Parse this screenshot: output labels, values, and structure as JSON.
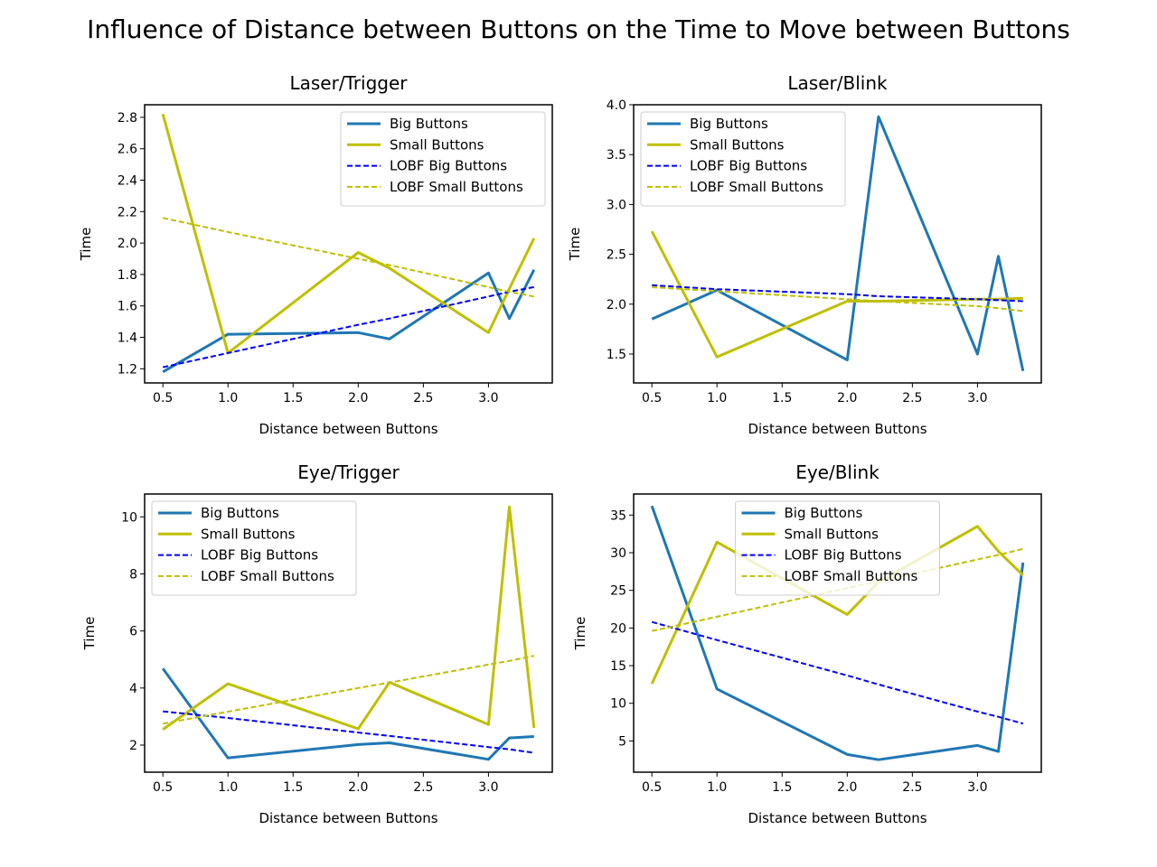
{
  "figure": {
    "title": "Influence of Distance between Buttons on the Time to Move between Buttons"
  },
  "colors": {
    "big": "#1f77b4",
    "small": "#bfbf00",
    "lobf_big": "#0000ff",
    "lobf_small": "#bfbf00"
  },
  "chart_data": [
    {
      "type": "line",
      "title": "Laser/Trigger",
      "xlabel": "Distance between Buttons",
      "ylabel": "Time",
      "xlim": [
        0.36,
        3.49
      ],
      "ylim": [
        1.11,
        2.88
      ],
      "xticks": [
        0.5,
        1.0,
        1.5,
        2.0,
        2.5,
        3.0
      ],
      "xtick_labels": [
        "0.5",
        "1.0",
        "1.5",
        "2.0",
        "2.5",
        "3.0"
      ],
      "yticks": [
        1.2,
        1.4,
        1.6,
        1.8,
        2.0,
        2.2,
        2.4,
        2.6,
        2.8
      ],
      "ytick_labels": [
        "1.2",
        "1.4",
        "1.6",
        "1.8",
        "2.0",
        "2.2",
        "2.4",
        "2.6",
        "2.8"
      ],
      "legend_loc": "upper right",
      "x": [
        0.5,
        1.0,
        2.0,
        2.24,
        3.0,
        3.16,
        3.35
      ],
      "series": [
        {
          "name": "Big Buttons",
          "style": "solid",
          "color_key": "big",
          "values": [
            1.18,
            1.42,
            1.43,
            1.39,
            1.81,
            1.52,
            1.83
          ]
        },
        {
          "name": "Small Buttons",
          "style": "solid",
          "color_key": "small",
          "values": [
            2.82,
            1.3,
            1.94,
            1.84,
            1.43,
            1.71,
            2.03
          ]
        },
        {
          "name": "LOBF Big Buttons",
          "style": "dashed",
          "color_key": "lobf_big",
          "values": [
            1.21,
            1.3,
            1.48,
            1.52,
            1.66,
            1.69,
            1.72
          ]
        },
        {
          "name": "LOBF Small Buttons",
          "style": "dashed",
          "color_key": "lobf_small",
          "values": [
            2.16,
            2.07,
            1.9,
            1.86,
            1.72,
            1.69,
            1.66
          ]
        }
      ]
    },
    {
      "type": "line",
      "title": "Laser/Blink",
      "xlabel": "Distance between Buttons",
      "ylabel": "Time",
      "xlim": [
        0.36,
        3.49
      ],
      "ylim": [
        1.21,
        4.0
      ],
      "xticks": [
        0.5,
        1.0,
        1.5,
        2.0,
        2.5,
        3.0
      ],
      "xtick_labels": [
        "0.5",
        "1.0",
        "1.5",
        "2.0",
        "2.5",
        "3.0"
      ],
      "yticks": [
        1.5,
        2.0,
        2.5,
        3.0,
        3.5,
        4.0
      ],
      "ytick_labels": [
        "1.5",
        "2.0",
        "2.5",
        "3.0",
        "3.5",
        "4.0"
      ],
      "legend_loc": "upper left",
      "x": [
        0.5,
        1.0,
        2.0,
        2.24,
        3.0,
        3.16,
        3.35
      ],
      "series": [
        {
          "name": "Big Buttons",
          "style": "solid",
          "color_key": "big",
          "values": [
            1.85,
            2.14,
            1.44,
            3.88,
            1.5,
            2.48,
            1.33
          ]
        },
        {
          "name": "Small Buttons",
          "style": "solid",
          "color_key": "small",
          "values": [
            2.73,
            1.47,
            2.03,
            2.03,
            2.05,
            2.05,
            2.06
          ]
        },
        {
          "name": "LOBF Big Buttons",
          "style": "dashed",
          "color_key": "lobf_big",
          "values": [
            2.19,
            2.15,
            2.1,
            2.08,
            2.05,
            2.04,
            2.03
          ]
        },
        {
          "name": "LOBF Small Buttons",
          "style": "dashed",
          "color_key": "lobf_small",
          "values": [
            2.17,
            2.13,
            2.05,
            2.03,
            1.98,
            1.96,
            1.93
          ]
        }
      ]
    },
    {
      "type": "line",
      "title": "Eye/Trigger",
      "xlabel": "Distance between Buttons",
      "ylabel": "Time",
      "xlim": [
        0.36,
        3.49
      ],
      "ylim": [
        1.05,
        10.8
      ],
      "xticks": [
        0.5,
        1.0,
        1.5,
        2.0,
        2.5,
        3.0
      ],
      "xtick_labels": [
        "0.5",
        "1.0",
        "1.5",
        "2.0",
        "2.5",
        "3.0"
      ],
      "yticks": [
        2,
        4,
        6,
        8,
        10
      ],
      "ytick_labels": [
        "2",
        "4",
        "6",
        "8",
        "10"
      ],
      "legend_loc": "upper left",
      "x": [
        0.5,
        1.0,
        2.0,
        2.24,
        3.0,
        3.16,
        3.35
      ],
      "series": [
        {
          "name": "Big Buttons",
          "style": "solid",
          "color_key": "big",
          "values": [
            4.68,
            1.55,
            2.02,
            2.08,
            1.5,
            2.25,
            2.3
          ]
        },
        {
          "name": "Small Buttons",
          "style": "solid",
          "color_key": "small",
          "values": [
            2.55,
            4.15,
            2.57,
            4.2,
            2.72,
            10.35,
            2.6
          ]
        },
        {
          "name": "LOBF Big Buttons",
          "style": "dashed",
          "color_key": "lobf_big",
          "values": [
            3.18,
            2.95,
            2.44,
            2.32,
            1.93,
            1.85,
            1.73
          ]
        },
        {
          "name": "LOBF Small Buttons",
          "style": "dashed",
          "color_key": "lobf_small",
          "values": [
            2.75,
            3.17,
            4.0,
            4.19,
            4.82,
            4.95,
            5.13
          ]
        }
      ]
    },
    {
      "type": "line",
      "title": "Eye/Blink",
      "xlabel": "Distance between Buttons",
      "ylabel": "Time",
      "xlim": [
        0.36,
        3.49
      ],
      "ylim": [
        0.85,
        37.8
      ],
      "xticks": [
        0.5,
        1.0,
        1.5,
        2.0,
        2.5,
        3.0
      ],
      "xtick_labels": [
        "0.5",
        "1.0",
        "1.5",
        "2.0",
        "2.5",
        "3.0"
      ],
      "yticks": [
        5,
        10,
        15,
        20,
        25,
        30,
        35
      ],
      "ytick_labels": [
        "5",
        "10",
        "15",
        "20",
        "25",
        "30",
        "35"
      ],
      "legend_loc": "upper center",
      "x": [
        0.5,
        1.0,
        2.0,
        2.24,
        3.0,
        3.16,
        3.35
      ],
      "series": [
        {
          "name": "Big Buttons",
          "style": "solid",
          "color_key": "big",
          "values": [
            36.2,
            11.9,
            3.2,
            2.5,
            4.4,
            3.6,
            28.7
          ]
        },
        {
          "name": "Small Buttons",
          "style": "solid",
          "color_key": "small",
          "values": [
            12.6,
            31.4,
            21.8,
            26.1,
            33.5,
            30.2,
            27.0
          ]
        },
        {
          "name": "LOBF Big Buttons",
          "style": "dashed",
          "color_key": "lobf_big",
          "values": [
            20.8,
            18.4,
            13.7,
            12.5,
            8.9,
            8.2,
            7.3
          ]
        },
        {
          "name": "LOBF Small Buttons",
          "style": "dashed",
          "color_key": "lobf_small",
          "values": [
            19.6,
            21.5,
            25.3,
            26.2,
            29.1,
            29.7,
            30.5
          ]
        }
      ]
    }
  ]
}
